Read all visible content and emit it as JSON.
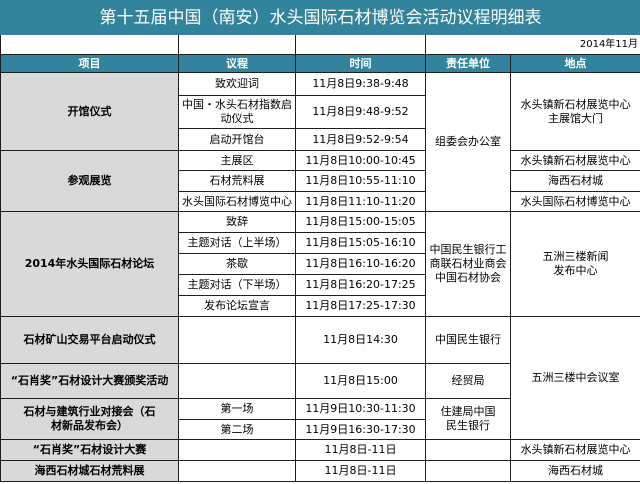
{
  "title": "第十五届中国（南安）水头国际石材博览会活动议程明细表",
  "date_note": "2014年11月",
  "headers": [
    "项目",
    "议程",
    "时间",
    "责任单位",
    "地点"
  ],
  "colors": {
    "header_bg": "#31849b",
    "project_bg": "#d9d9d9"
  },
  "rows": {
    "opening": {
      "project": "开馆仪式",
      "items": [
        {
          "agenda": "致欢迎词",
          "time": "11月8日9:38-9:48"
        },
        {
          "agenda": "中国・水头石材指数启动仪式",
          "time": "11月8日9:48-9:52"
        },
        {
          "agenda": "启动开馆台",
          "time": "11月8日9:52-9:54"
        }
      ],
      "location": "水头镇新石材展览中心主展馆大门"
    },
    "organizer_shared": "组委会办公室",
    "visit": {
      "project": "参观展览",
      "items": [
        {
          "agenda": "主展区",
          "time": "11月8日10:00-10:45",
          "location": "水头镇新石材展览中心"
        },
        {
          "agenda": "石材荒料展",
          "time": "11月8日10:55-11:10",
          "location": "海西石材城"
        },
        {
          "agenda": "水头国际石材博览中心",
          "time": "11月8日11:10-11:20",
          "location": "水头国际石材博览中心"
        }
      ]
    },
    "forum": {
      "project": "2014年水头国际石材论坛",
      "items": [
        {
          "agenda": "致辞",
          "time": "11月8日15:00-15:05"
        },
        {
          "agenda": "主题对话（上半场）",
          "time": "11月8日15:05-16:10"
        },
        {
          "agenda": "茶歇",
          "time": "11月8日16:10-16:20"
        },
        {
          "agenda": "主题对话（下半场）",
          "time": "11月8日16:20-17:25"
        },
        {
          "agenda": "发布论坛宣言",
          "time": "11月8日17:25-17:30"
        }
      ],
      "responsible": "中国民生银行工商联石材业商会中国石材协会",
      "location": "五洲三楼新闻发布中心"
    },
    "mining": {
      "project": "石材矿山交易平台启动仪式",
      "time": "11月8日14:30",
      "responsible": "中国民生银行"
    },
    "award": {
      "project": "“石肖奖”石材设计大赛颁奖活动",
      "time": "11月8日15:00",
      "responsible": "经贸局"
    },
    "meeting_room": "五洲三楼中会议室",
    "matchmaking": {
      "project": "石材与建筑行业对接会（石材新品发布会）",
      "items": [
        {
          "agenda": "第一场",
          "time": "11月9日10:30-11:30"
        },
        {
          "agenda": "第二场",
          "time": "11月9日16:30-17:30"
        }
      ],
      "responsible": "住建局中国民生银行"
    },
    "contest": {
      "project": "“石肖奖”石材设计大赛",
      "time": "11月8日-11日",
      "location": "水头镇新石材展览中心"
    },
    "rough": {
      "project": "海西石材城石材荒料展",
      "time": "11月8日-11日",
      "location": "海西石材城"
    }
  }
}
